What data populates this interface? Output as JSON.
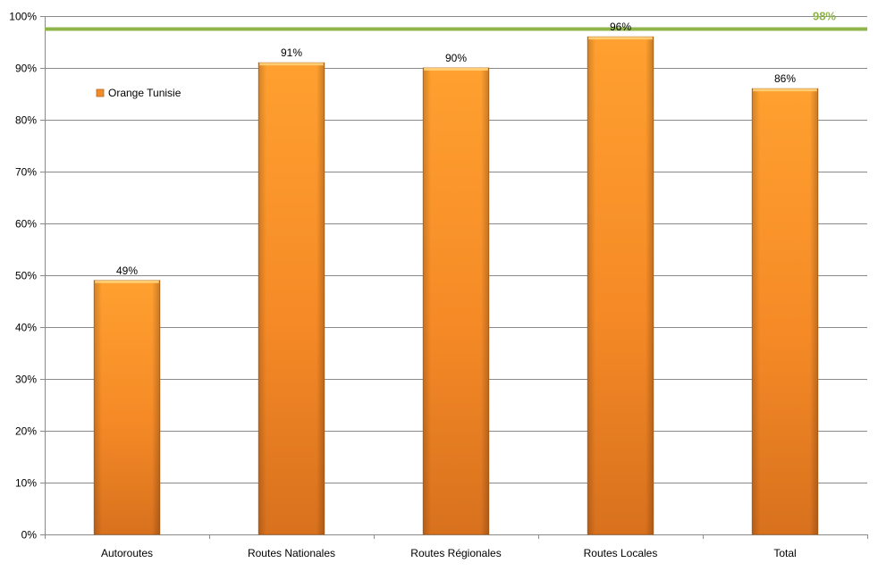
{
  "chart_data": {
    "type": "bar",
    "categories": [
      "Autoroutes",
      "Routes Nationales",
      "Routes Régionales",
      "Routes Locales",
      "Total"
    ],
    "series": [
      {
        "name": "Orange Tunisie",
        "values": [
          49,
          91,
          90,
          96,
          86
        ],
        "color": "#f08c28"
      }
    ],
    "data_labels": [
      "49%",
      "91%",
      "90%",
      "96%",
      "86%"
    ],
    "ylim": [
      0,
      100
    ],
    "y_ticks": [
      0,
      10,
      20,
      30,
      40,
      50,
      60,
      70,
      80,
      90,
      100
    ],
    "y_tick_labels": [
      "0%",
      "10%",
      "20%",
      "30%",
      "40%",
      "50%",
      "60%",
      "70%",
      "80%",
      "90%",
      "100%"
    ],
    "reference_line": {
      "value": 97.5,
      "label": "98%",
      "color": "#8fb54a"
    },
    "grid": true,
    "legend_position": "top-left"
  }
}
